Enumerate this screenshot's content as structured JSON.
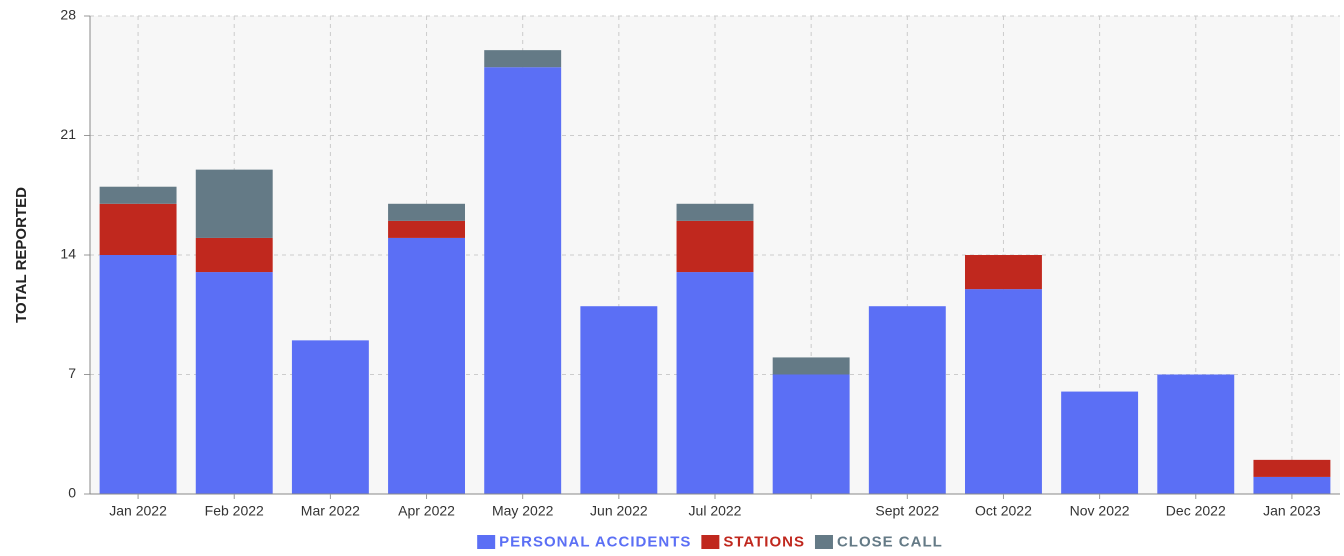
{
  "chart_data": {
    "type": "stacked_bar",
    "y_label": "TOTAL REPORTED",
    "categories": [
      "Jan 2022",
      "Feb 2022",
      "Mar 2022",
      "Apr 2022",
      "May 2022",
      "Jun 2022",
      "Jul 2022",
      null,
      "Sept 2022",
      "Oct 2022",
      "Nov 2022",
      "Dec 2022",
      "Jan 2023"
    ],
    "series": [
      {
        "name": "PERSONAL ACCIDENTS",
        "color": "#5b6ff5",
        "values": [
          14,
          13,
          9,
          15,
          25,
          11,
          13,
          7,
          11,
          12,
          6,
          7,
          1
        ]
      },
      {
        "name": "STATIONS",
        "color": "#c0281e",
        "values": [
          3,
          2,
          0,
          1,
          0,
          0,
          3,
          0,
          0,
          2,
          0,
          0,
          1
        ]
      },
      {
        "name": "CLOSE CALL",
        "color": "#647a86",
        "values": [
          1,
          4,
          0,
          1,
          1,
          0,
          1,
          1,
          0,
          0,
          0,
          0,
          0
        ]
      }
    ],
    "ylim": [
      0,
      28
    ],
    "yticks": [
      0,
      7,
      14,
      21,
      28
    ],
    "grid": true,
    "legend": "bottom"
  }
}
